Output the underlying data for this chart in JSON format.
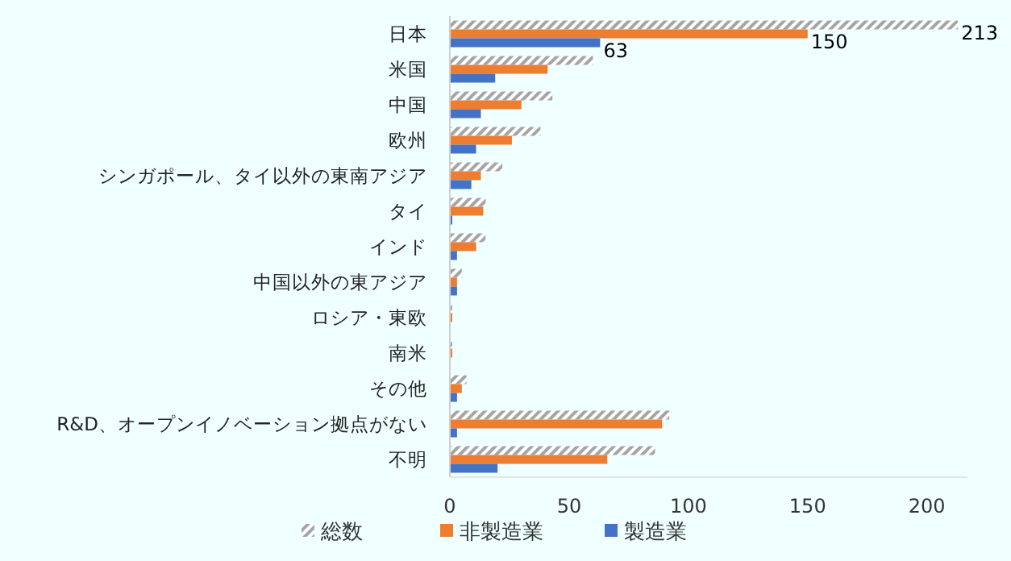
{
  "chart_data": {
    "type": "bar",
    "orientation": "horizontal",
    "categories": [
      "日本",
      "米国",
      "中国",
      "欧州",
      "シンガポール、タイ以外の東南アジア",
      "タイ",
      "インド",
      "中国以外の東アジア",
      "ロシア・東欧",
      "南米",
      "その他",
      "R&D、オープンイノベーション拠点がない",
      "不明"
    ],
    "series": [
      {
        "name": "総数",
        "color": "#a5a5a5",
        "values": [
          213,
          60,
          43,
          38,
          22,
          15,
          15,
          5,
          1,
          1,
          7,
          92,
          86
        ],
        "value_labels": [
          "213",
          null,
          null,
          null,
          null,
          null,
          null,
          null,
          null,
          null,
          null,
          null,
          null
        ]
      },
      {
        "name": "非製造業",
        "color": "#ed7d31",
        "values": [
          150,
          41,
          30,
          26,
          13,
          14,
          11,
          3,
          1,
          1,
          5,
          89,
          66
        ],
        "value_labels": [
          "150",
          null,
          null,
          null,
          null,
          null,
          null,
          null,
          null,
          null,
          null,
          null,
          null
        ]
      },
      {
        "name": "製造業",
        "color": "#4472c4",
        "values": [
          63,
          19,
          13,
          11,
          9,
          1,
          3,
          3,
          0,
          0,
          3,
          3,
          20
        ],
        "value_labels": [
          "63",
          null,
          null,
          null,
          null,
          null,
          null,
          null,
          null,
          null,
          null,
          null,
          null
        ]
      }
    ],
    "xlim": [
      0,
      217
    ],
    "xticks": [
      0,
      50,
      100,
      150,
      200
    ],
    "grid": false,
    "legend": "bottom"
  }
}
